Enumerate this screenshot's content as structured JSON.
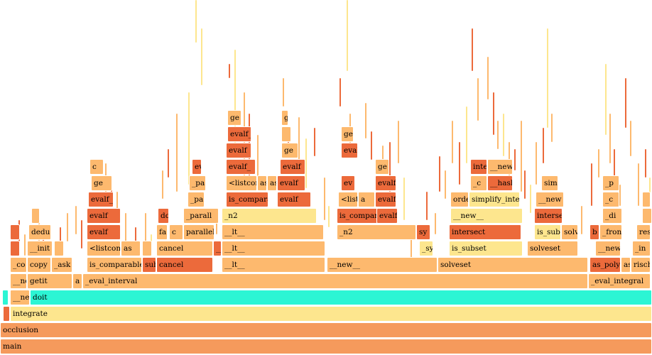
{
  "colors": {
    "orange": "#F59A5C",
    "red": "#EC6A3B",
    "light": "#FDB96E",
    "yellow": "#FDE68E",
    "cyan": "#2CF5D4"
  },
  "rows": [
    [
      {
        "label": "main",
        "c": "orange"
      }
    ],
    [
      {
        "label": "occlusion",
        "c": "orange"
      }
    ],
    [
      {
        "label": "",
        "c": "red"
      },
      {
        "label": "integrate",
        "c": "yellow"
      }
    ],
    [
      {
        "label": "",
        "c": "cyan"
      },
      {
        "label": "__ne",
        "c": "light"
      },
      {
        "label": "doit",
        "c": "cyan"
      }
    ],
    [
      {
        "label": "__ne",
        "c": "light"
      },
      {
        "label": "getit",
        "c": "light"
      },
      {
        "label": "a",
        "c": "light"
      },
      {
        "label": "_eval_interval",
        "c": "light"
      },
      {
        "label": "_eval_integral",
        "c": "light"
      }
    ],
    [
      {
        "label": "_co",
        "c": "light"
      },
      {
        "label": "copy",
        "c": "light"
      },
      {
        "label": "_ask",
        "c": "light"
      },
      {
        "label": "is_comparable",
        "c": "light"
      },
      {
        "label": "sub",
        "c": "red"
      },
      {
        "label": "cancel",
        "c": "red"
      },
      {
        "label": "__lt__",
        "c": "light"
      },
      {
        "label": "__new__",
        "c": "light"
      },
      {
        "label": "solveset",
        "c": "light"
      },
      {
        "label": "as_poly",
        "c": "red"
      },
      {
        "label": "as",
        "c": "light"
      },
      {
        "label": "risch",
        "c": "light"
      }
    ],
    [
      {
        "label": "",
        "c": "red"
      },
      {
        "label": "__init",
        "c": "light"
      },
      {
        "label": "",
        "c": "light"
      },
      {
        "label": "<listcomp",
        "c": "light"
      },
      {
        "label": "as",
        "c": "light"
      },
      {
        "label": "",
        "c": "light"
      },
      {
        "label": "cancel",
        "c": "light"
      },
      {
        "label": "__lt__",
        "c": "red"
      },
      {
        "label": "__lt__",
        "c": "light"
      },
      {
        "label": "_sy",
        "c": "yellow"
      },
      {
        "label": "is_subset",
        "c": "yellow"
      },
      {
        "label": "solveset",
        "c": "light"
      },
      {
        "label": "__new_",
        "c": "light"
      },
      {
        "label": "_in",
        "c": "light"
      }
    ],
    [
      {
        "label": "",
        "c": "red"
      },
      {
        "label": "dedu",
        "c": "light"
      },
      {
        "label": "evalf",
        "c": "red"
      },
      {
        "label": "fa",
        "c": "light"
      },
      {
        "label": "c",
        "c": "light"
      },
      {
        "label": "parallel",
        "c": "light"
      },
      {
        "label": "__lt__",
        "c": "light"
      },
      {
        "label": "_n2",
        "c": "light"
      },
      {
        "label": "sy",
        "c": "red"
      },
      {
        "label": "intersect",
        "c": "red"
      },
      {
        "label": "is_sub",
        "c": "yellow"
      },
      {
        "label": "solv",
        "c": "light"
      },
      {
        "label": "b",
        "c": "red"
      },
      {
        "label": "_fron",
        "c": "light"
      },
      {
        "label": "res",
        "c": "light"
      }
    ],
    [
      {
        "label": "",
        "c": "light"
      },
      {
        "label": "evalf",
        "c": "red"
      },
      {
        "label": "do",
        "c": "red"
      },
      {
        "label": "_parall",
        "c": "light"
      },
      {
        "label": "_n2",
        "c": "yellow"
      },
      {
        "label": "is_compar",
        "c": "red"
      },
      {
        "label": "evalf",
        "c": "red"
      },
      {
        "label": "__new__",
        "c": "yellow"
      },
      {
        "label": "interse",
        "c": "red"
      },
      {
        "label": "_di",
        "c": "light"
      },
      {
        "label": "",
        "c": "light"
      }
    ],
    [
      {
        "label": "evalf_",
        "c": "red"
      },
      {
        "label": "_pa",
        "c": "light"
      },
      {
        "label": "is_comparable",
        "c": "red"
      },
      {
        "label": "evalf",
        "c": "red"
      },
      {
        "label": "<listco",
        "c": "light"
      },
      {
        "label": "a",
        "c": "light"
      },
      {
        "label": "evalf",
        "c": "red"
      },
      {
        "label": "orde",
        "c": "light"
      },
      {
        "label": "simplify_inter",
        "c": "yellow"
      },
      {
        "label": "__new",
        "c": "light"
      },
      {
        "label": "_c",
        "c": "light"
      },
      {
        "label": "",
        "c": "light"
      }
    ],
    [
      {
        "label": "ge",
        "c": "light"
      },
      {
        "label": "_pa",
        "c": "light"
      },
      {
        "label": "<listcom",
        "c": "light"
      },
      {
        "label": "as",
        "c": "light"
      },
      {
        "label": "as",
        "c": "light"
      },
      {
        "label": "evalf",
        "c": "red"
      },
      {
        "label": "evalf",
        "c": "red"
      },
      {
        "label": "ev",
        "c": "red"
      },
      {
        "label": "_c",
        "c": "light"
      },
      {
        "label": "__hash_",
        "c": "red"
      },
      {
        "label": "simp",
        "c": "light"
      },
      {
        "label": "_p",
        "c": "light"
      }
    ],
    [
      {
        "label": "c",
        "c": "light"
      },
      {
        "label": "evalf",
        "c": "red"
      },
      {
        "label": "evalf_",
        "c": "red"
      },
      {
        "label": "evalf",
        "c": "red"
      },
      {
        "label": "ge",
        "c": "light"
      },
      {
        "label": "inte",
        "c": "red"
      },
      {
        "label": "__new",
        "c": "light"
      }
    ],
    [
      {
        "label": "evalf",
        "c": "red"
      },
      {
        "label": "ge",
        "c": "light"
      },
      {
        "label": "evalf",
        "c": "red"
      }
    ],
    [
      {
        "label": "evalf_",
        "c": "red"
      },
      {
        "label": "",
        "c": "light"
      },
      {
        "label": "ge",
        "c": "light"
      }
    ],
    [
      {
        "label": "ge",
        "c": "light"
      },
      {
        "label": "ge",
        "c": "light"
      }
    ]
  ]
}
